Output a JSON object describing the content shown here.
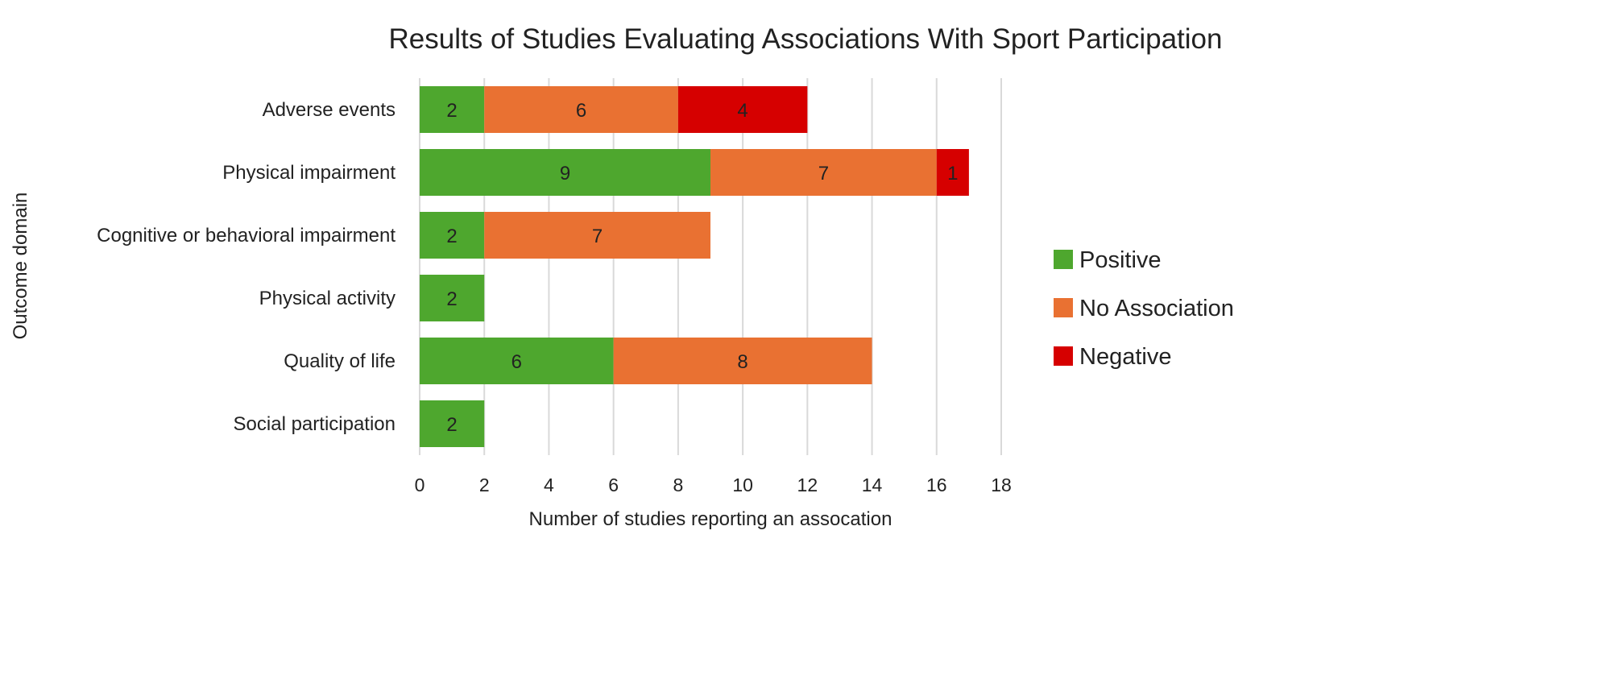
{
  "chart_data": {
    "type": "bar",
    "orientation": "horizontal",
    "stacked": true,
    "title": "Results of Studies Evaluating Associations With Sport Participation",
    "xlabel": "Number of studies reporting an assocation",
    "ylabel": "Outcome domain",
    "xlim": [
      0,
      18
    ],
    "xticks": [
      0,
      2,
      4,
      6,
      8,
      10,
      12,
      14,
      16,
      18
    ],
    "grid": "vertical",
    "legend": "right",
    "categories": [
      "Adverse events",
      "Physical impairment",
      "Cognitive or behavioral impairment",
      "Physical activity",
      "Quality of life",
      "Social participation"
    ],
    "series": [
      {
        "name": "Positive",
        "color": "#4EA72E",
        "values": [
          2,
          9,
          2,
          2,
          6,
          2
        ]
      },
      {
        "name": "No Association",
        "color": "#E97132",
        "values": [
          6,
          7,
          7,
          0,
          8,
          0
        ]
      },
      {
        "name": "Negative",
        "color": "#D60000",
        "values": [
          4,
          1,
          0,
          0,
          0,
          0
        ]
      }
    ]
  }
}
